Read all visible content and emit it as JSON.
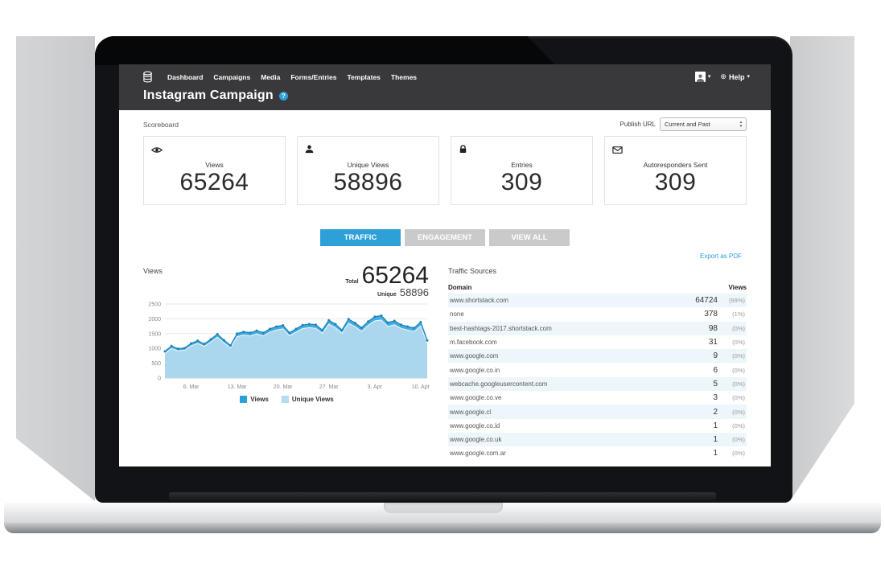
{
  "nav": {
    "items": [
      "Dashboard",
      "Campaigns",
      "Media",
      "Forms/Entries",
      "Templates",
      "Themes"
    ],
    "help_label": "Help"
  },
  "page": {
    "title": "Instagram Campaign"
  },
  "publish": {
    "label": "Publish URL",
    "value": "Current and Past"
  },
  "scoreboard": {
    "label": "Scoreboard",
    "cards": [
      {
        "icon": "eye-icon",
        "label": "Views",
        "value": "65264"
      },
      {
        "icon": "user-icon",
        "label": "Unique Views",
        "value": "58896"
      },
      {
        "icon": "lock-icon",
        "label": "Entries",
        "value": "309"
      },
      {
        "icon": "envelope-icon",
        "label": "Autoresponders Sent",
        "value": "309"
      }
    ]
  },
  "tabs": {
    "items": [
      {
        "label": "TRAFFIC",
        "active": true
      },
      {
        "label": "ENGAGEMENT",
        "active": false
      },
      {
        "label": "VIEW ALL",
        "active": false
      }
    ]
  },
  "export_link": "Export as PDF",
  "views_panel": {
    "label": "Views",
    "total_label": "Total",
    "total_value": "65264",
    "unique_label": "Unique",
    "unique_value": "58896"
  },
  "chart_data": {
    "type": "area",
    "title": "Views",
    "x_tick_labels": [
      "6. Mar",
      "13. Mar",
      "20. Mar",
      "27. Mar",
      "3. Apr",
      "10. Apr"
    ],
    "x_tick_indices": [
      4,
      11,
      18,
      25,
      32,
      39
    ],
    "ylim": [
      0,
      2500
    ],
    "y_ticks": [
      0,
      500,
      1000,
      1500,
      2000,
      2500
    ],
    "grid": true,
    "legend_position": "bottom",
    "series": [
      {
        "name": "Views",
        "total": 65264,
        "color": "#2da0d8",
        "values": [
          900,
          1080,
          990,
          1010,
          1170,
          1260,
          1150,
          1310,
          1480,
          1280,
          1100,
          1500,
          1560,
          1530,
          1600,
          1530,
          1660,
          1740,
          1780,
          1530,
          1660,
          1790,
          1820,
          1800,
          1620,
          1950,
          1820,
          1620,
          1990,
          1860,
          1700,
          1910,
          2070,
          2110,
          1870,
          1930,
          1800,
          1740,
          1690,
          1890,
          1270
        ]
      },
      {
        "name": "Unique Views",
        "total": 58896,
        "color": "#b2dcf2",
        "values": [
          830,
          1000,
          920,
          940,
          1090,
          1170,
          1070,
          1220,
          1380,
          1190,
          1020,
          1400,
          1450,
          1420,
          1490,
          1420,
          1550,
          1620,
          1660,
          1430,
          1550,
          1670,
          1700,
          1680,
          1510,
          1820,
          1700,
          1510,
          1850,
          1730,
          1580,
          1780,
          1930,
          1960,
          1740,
          1800,
          1680,
          1620,
          1570,
          1760,
          1180
        ]
      }
    ]
  },
  "traffic_sources": {
    "title": "Traffic Sources",
    "col_domain": "Domain",
    "col_views": "Views",
    "rows": [
      {
        "domain": "www.shortstack.com",
        "views": "64724",
        "pct": "(99%)"
      },
      {
        "domain": "none",
        "views": "378",
        "pct": "(1%)"
      },
      {
        "domain": "best-hashtags-2017.shortstack.com",
        "views": "98",
        "pct": "(0%)"
      },
      {
        "domain": "m.facebook.com",
        "views": "31",
        "pct": "(0%)"
      },
      {
        "domain": "www.google.com",
        "views": "9",
        "pct": "(0%)"
      },
      {
        "domain": "www.google.co.in",
        "views": "6",
        "pct": "(0%)"
      },
      {
        "domain": "webcache.googleusercontent.com",
        "views": "5",
        "pct": "(0%)"
      },
      {
        "domain": "www.google.co.ve",
        "views": "3",
        "pct": "(0%)"
      },
      {
        "domain": "www.google.cl",
        "views": "2",
        "pct": "(0%)"
      },
      {
        "domain": "www.google.co.id",
        "views": "1",
        "pct": "(0%)"
      },
      {
        "domain": "www.google.co.uk",
        "views": "1",
        "pct": "(0%)"
      },
      {
        "domain": "www.google.com.ar",
        "views": "1",
        "pct": "(0%)"
      }
    ]
  },
  "colors": {
    "accent_blue": "#2da0d8",
    "views_area": "#47abdd",
    "views_line": "#1e85ba",
    "unique_area": "#aad7ee",
    "tab_inactive": "#c9cacb",
    "row_stripe": "#edf6fb",
    "header_bg": "#39393b"
  }
}
